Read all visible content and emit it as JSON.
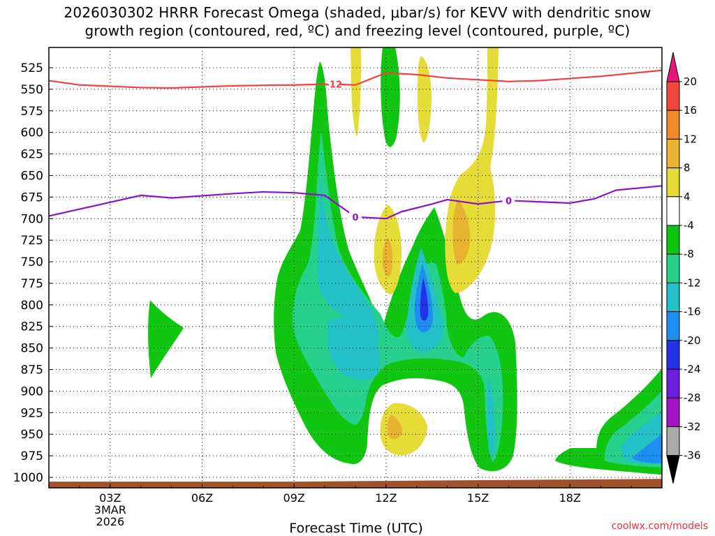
{
  "header": {
    "title_line1": "2026030302 HRRR Forecast Omega (shaded, μbar/s) for KEVV with dendritic snow",
    "title_line2": "growth region (contoured, red, ºC) and freezing level (contoured, purple, ºC)"
  },
  "footer": {
    "xlabel": "Forecast Time (UTC)",
    "credit": "coolwx.com/models"
  },
  "chart_data": {
    "type": "heatmap",
    "title": "2026030302 HRRR Forecast Omega (shaded, μbar/s) for KEVV with dendritic snow growth region (contoured, red, ºC) and freezing level (contoured, purple, ºC)",
    "xlabel": "Forecast Time (UTC)",
    "ylabel": "",
    "x_unit": "hour UTC (3 MAR 2026 = day 0)",
    "xlim": [
      1,
      21
    ],
    "ylim_hPa": [
      1010,
      505
    ],
    "y_ticks": [
      525,
      550,
      575,
      600,
      625,
      650,
      675,
      700,
      725,
      750,
      775,
      800,
      825,
      850,
      875,
      900,
      925,
      950,
      975,
      1000
    ],
    "x_ticks": [
      {
        "x": 3,
        "label": "03Z",
        "sub1": "3MAR",
        "sub2": "2026"
      },
      {
        "x": 6,
        "label": "06Z"
      },
      {
        "x": 9,
        "label": "09Z"
      },
      {
        "x": 12,
        "label": "12Z"
      },
      {
        "x": 15,
        "label": "15Z"
      },
      {
        "x": 18,
        "label": "18Z"
      }
    ],
    "grid": true,
    "colorbar": {
      "labels": [
        "20",
        "16",
        "12",
        "8",
        "4",
        "-4",
        "-8",
        "-12",
        "-16",
        "-20",
        "-24",
        "-28",
        "-32",
        "-36"
      ],
      "colors": [
        "#e8157f",
        "#f0473c",
        "#ef8a2a",
        "#e9b332",
        "#e6dc37",
        "#ffffff",
        "#10c610",
        "#27d08c",
        "#23c0c8",
        "#1e8ef0",
        "#2432e6",
        "#6f1ee0",
        "#a612c8",
        "#aaaaaa",
        "#000000"
      ]
    },
    "series": [
      {
        "name": "-12",
        "color": "#f04040",
        "points": [
          [
            1,
            540
          ],
          [
            2,
            545
          ],
          [
            4,
            548
          ],
          [
            5,
            548.5
          ],
          [
            7,
            546
          ],
          [
            9,
            545
          ],
          [
            10.2,
            544
          ],
          [
            11,
            545
          ],
          [
            12,
            531
          ],
          [
            13,
            533
          ],
          [
            14,
            537
          ],
          [
            16,
            541
          ],
          [
            17,
            540
          ],
          [
            19,
            535
          ],
          [
            21,
            528
          ]
        ]
      },
      {
        "name": "0",
        "color": "#8c12c8",
        "points": [
          [
            1,
            697
          ],
          [
            4,
            673
          ],
          [
            5,
            676
          ],
          [
            7,
            671
          ],
          [
            8,
            669
          ],
          [
            9,
            670
          ],
          [
            10,
            673
          ],
          [
            11,
            698
          ],
          [
            12,
            700
          ],
          [
            12.5,
            692
          ],
          [
            13.5,
            683
          ],
          [
            14,
            678
          ],
          [
            15,
            683
          ],
          [
            16,
            679
          ],
          [
            18,
            682
          ],
          [
            18.8,
            677
          ],
          [
            19.5,
            667
          ],
          [
            21,
            662
          ]
        ]
      }
    ],
    "ground": {
      "color": "#a0522d",
      "pressure_hPa": 1005
    }
  }
}
